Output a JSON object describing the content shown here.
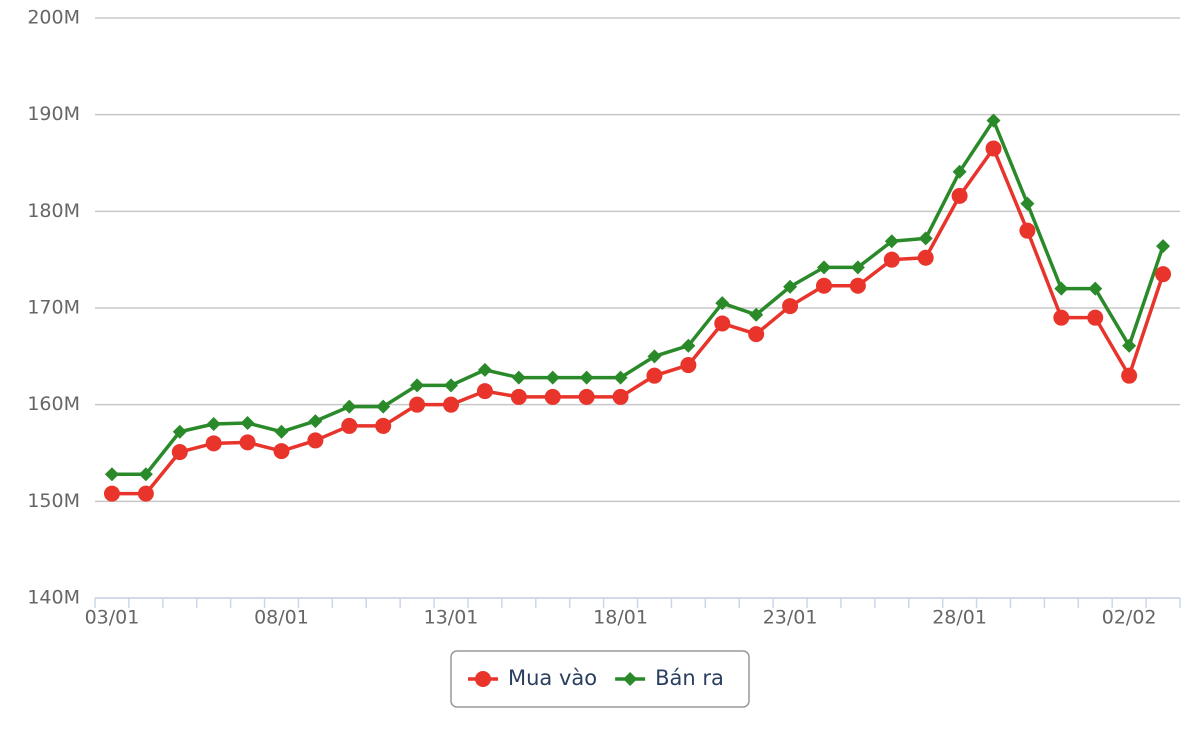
{
  "chart_data": {
    "type": "line",
    "categories": [
      "03/01",
      null,
      null,
      null,
      null,
      "08/01",
      null,
      null,
      null,
      null,
      "13/01",
      null,
      null,
      null,
      null,
      "18/01",
      null,
      null,
      null,
      null,
      "23/01",
      null,
      null,
      null,
      null,
      "28/01",
      null,
      null,
      null,
      null,
      "02/02",
      null
    ],
    "series": [
      {
        "name": "Mua vào",
        "color": "#e8342b",
        "marker": "circle",
        "values": [
          150.8,
          150.8,
          155.1,
          156.0,
          156.1,
          155.2,
          156.3,
          157.8,
          157.8,
          160.0,
          160.0,
          161.4,
          160.8,
          160.8,
          160.8,
          160.8,
          163.0,
          164.1,
          168.4,
          167.3,
          170.2,
          172.3,
          172.3,
          175.0,
          175.2,
          181.6,
          186.5,
          178.0,
          169.0,
          169.0,
          163.0,
          173.5
        ]
      },
      {
        "name": "Bán ra",
        "color": "#2a8a2a",
        "marker": "diamond",
        "values": [
          152.8,
          152.8,
          157.2,
          158.0,
          158.1,
          157.2,
          158.3,
          159.8,
          159.8,
          162.0,
          162.0,
          163.6,
          162.8,
          162.8,
          162.8,
          162.8,
          165.0,
          166.1,
          170.5,
          169.3,
          172.2,
          174.2,
          174.2,
          176.9,
          177.2,
          184.1,
          189.4,
          180.8,
          172.0,
          172.0,
          166.1,
          176.4
        ]
      }
    ],
    "ylim": [
      140,
      200
    ],
    "yticks": [
      {
        "value": 140,
        "label": "140M"
      },
      {
        "value": 150,
        "label": "150M"
      },
      {
        "value": 160,
        "label": "160M"
      },
      {
        "value": 170,
        "label": "170M"
      },
      {
        "value": 180,
        "label": "180M"
      },
      {
        "value": 190,
        "label": "190M"
      },
      {
        "value": 200,
        "label": "200M"
      }
    ],
    "grid": true,
    "legend": "bottom"
  }
}
